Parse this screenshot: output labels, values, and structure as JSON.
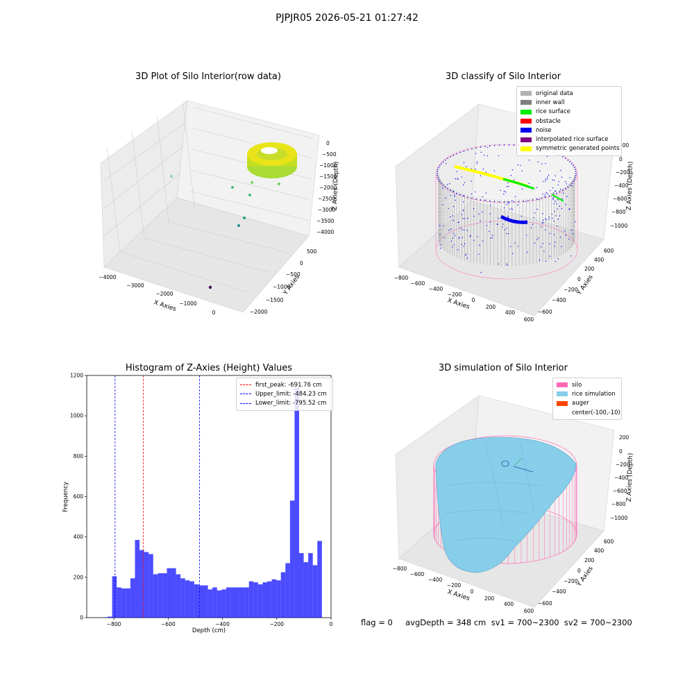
{
  "figure": {
    "suptitle": "PJPJR05 2026-05-21 01:27:42"
  },
  "panels": {
    "raw": {
      "title": "3D Plot of Silo Interior(row data)",
      "xlabel": "X Axies",
      "ylabel": "Y Axies",
      "zlabel": "Z Axies (Depth)",
      "xticks": [
        "−4000",
        "−3000",
        "−2000",
        "−1000",
        "0"
      ],
      "yticks": [
        "−2000",
        "−1500",
        "−1000",
        "−500",
        "0",
        "500"
      ],
      "zticks": [
        "0",
        "−500",
        "−1000",
        "−1500",
        "−2000",
        "−2500",
        "−3000",
        "−3500",
        "−4000"
      ]
    },
    "classify": {
      "title": "3D classify of Silo Interior",
      "xlabel": "X Axies",
      "ylabel": "Y Axies",
      "zlabel": "Z Axies (Depth)",
      "xticks": [
        "−800",
        "−600",
        "−400",
        "−200",
        "0",
        "200",
        "400",
        "600"
      ],
      "yticks": [
        "−600",
        "−400",
        "−200",
        "0",
        "200",
        "400",
        "600"
      ],
      "zticks": [
        "200",
        "0",
        "−200",
        "−400",
        "−600",
        "−800",
        "−1000"
      ],
      "legend": [
        {
          "label": "original data",
          "color": "#b0b0b0"
        },
        {
          "label": "inner wall",
          "color": "#808080"
        },
        {
          "label": "rice surface",
          "color": "#00ee00"
        },
        {
          "label": "obstacle",
          "color": "#ff0000"
        },
        {
          "label": "noise",
          "color": "#0000ee"
        },
        {
          "label": "interpolated rice surface",
          "color": "#800080"
        },
        {
          "label": "symmetric generated points",
          "color": "#ffff00"
        }
      ]
    },
    "simulation": {
      "title": "3D simulation of Silo Interior",
      "xlabel": "X Axies",
      "ylabel": "Y Axies",
      "zlabel": "Z Axies (Depth)",
      "xticks": [
        "−800",
        "−600",
        "−400",
        "−200",
        "0",
        "200",
        "400",
        "600"
      ],
      "yticks": [
        "−600",
        "−400",
        "−200",
        "0",
        "200",
        "400",
        "600"
      ],
      "zticks": [
        "200",
        "0",
        "−200",
        "−400",
        "−600",
        "−800",
        "−1000"
      ],
      "legend": [
        {
          "label": "silo",
          "color": "#ff69b4"
        },
        {
          "label": "rice simulation",
          "color": "#87ceeb"
        },
        {
          "label": "auger",
          "color": "#ff4500"
        },
        {
          "label": "center(-100,-10)",
          "color": ""
        }
      ]
    }
  },
  "status": {
    "text": "flag = 0     avgDepth = 348 cm  sv1 = 700~2300  sv2 = 700~2300"
  },
  "chart_data": {
    "type": "bar",
    "title": "Histogram of Z-Axies (Height) Values",
    "xlabel": "Depth (cm)",
    "ylabel": "Frequency",
    "xlim": [
      -900,
      0
    ],
    "ylim": [
      0,
      1200
    ],
    "xticks": [
      -800,
      -600,
      -400,
      -200,
      0
    ],
    "xtick_labels": [
      "−800",
      "−600",
      "−400",
      "−200",
      "0"
    ],
    "yticks": [
      0,
      200,
      400,
      600,
      800,
      1000,
      1200
    ],
    "bin_start": -840,
    "bin_width": 16.8,
    "values": [
      2,
      5,
      205,
      150,
      145,
      145,
      195,
      385,
      335,
      325,
      315,
      215,
      220,
      220,
      245,
      245,
      215,
      195,
      185,
      180,
      165,
      160,
      160,
      140,
      150,
      135,
      140,
      150,
      150,
      150,
      150,
      150,
      180,
      175,
      165,
      175,
      180,
      190,
      185,
      225,
      270,
      580,
      1140,
      320,
      275,
      320,
      260,
      380
    ],
    "color": "#0000ff",
    "lines": [
      {
        "label": "first_peak: -691.76 cm",
        "x": -691.76,
        "color": "#ff0000"
      },
      {
        "label": "Upper_limit: -484.23 cm",
        "x": -484.23,
        "color": "#0000ff"
      },
      {
        "label": "Lower_limit: -795.52 cm",
        "x": -795.52,
        "color": "#0000ff"
      }
    ],
    "legend_position": "top-right"
  }
}
